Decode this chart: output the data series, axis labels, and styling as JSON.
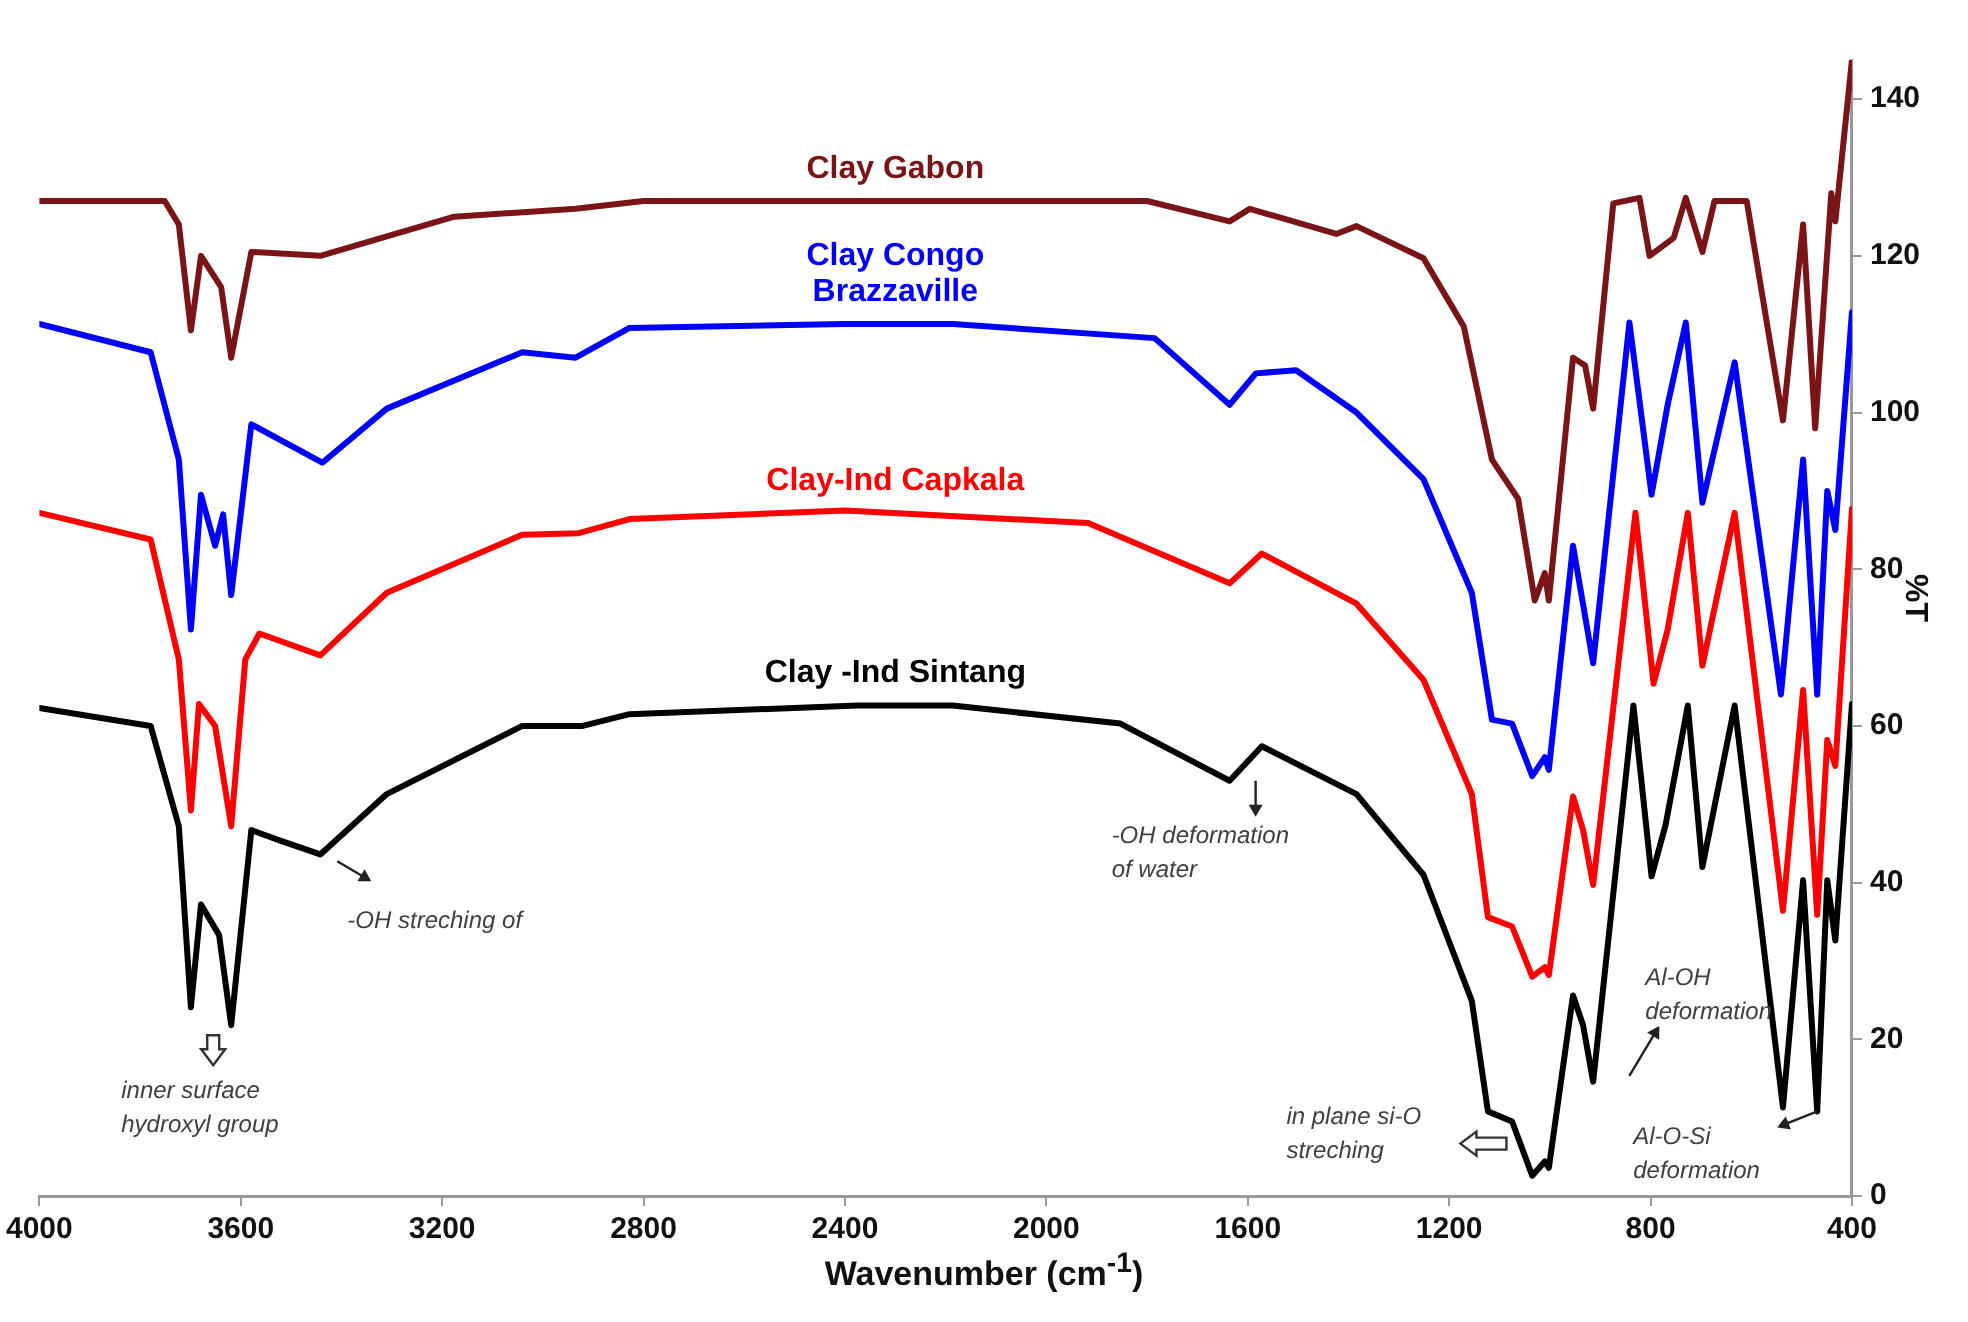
{
  "chart_data": {
    "type": "line",
    "xlabel": "Wavenumber (cm$^{-1}$)",
    "ylabel": "%T",
    "xlim": [
      4000,
      400
    ],
    "xticks": [
      4000,
      3600,
      3200,
      2800,
      2400,
      2000,
      1600,
      1200,
      800,
      400
    ],
    "ylim": [
      0,
      145
    ],
    "yticks": [
      0,
      20,
      40,
      60,
      80,
      100,
      120,
      140
    ],
    "grid": false,
    "legend": false,
    "marker": "none",
    "line_style": "solid",
    "series": [
      {
        "name": "Clay Gabon",
        "color": "#7b1416",
        "x": [
          4000,
          3779,
          3751,
          3723,
          3699,
          3679,
          3639,
          3619,
          3579,
          3442,
          3176,
          2935,
          2800,
          2400,
          2000,
          1800,
          1636,
          1596,
          1424,
          1384,
          1251,
          1171,
          1115,
          1063,
          1030,
          1010,
          1002,
          954,
          930,
          914,
          874,
          822,
          802,
          754,
          730,
          697,
          673,
          609,
          537,
          497,
          473,
          441,
          433,
          400
        ],
        "values": [
          127,
          127,
          127,
          124,
          110.5,
          120,
          116,
          107,
          120.5,
          120,
          125,
          126,
          127,
          127,
          127,
          127,
          124.4,
          126,
          122.8,
          123.8,
          119.7,
          111,
          94,
          89,
          76,
          79.5,
          76,
          107,
          106,
          100.5,
          126.7,
          127.4,
          120,
          122.3,
          127.4,
          120.5,
          127,
          127,
          99,
          124,
          98,
          128,
          124.4,
          145
        ]
      },
      {
        "name": "Clay Congo Brazzaville",
        "color": "#0000ff",
        "x": [
          4000,
          3779,
          3723,
          3699,
          3679,
          3651,
          3635,
          3619,
          3579,
          3438,
          3310,
          3041,
          2935,
          2828,
          2400,
          2186,
          1785,
          1636,
          1584,
          1504,
          1384,
          1251,
          1155,
          1115,
          1075,
          1035,
          1010,
          1002,
          954,
          914,
          842,
          798,
          766,
          730,
          697,
          633,
          541,
          497,
          469,
          449,
          433,
          400
        ],
        "values": [
          111.3,
          107.7,
          94,
          72.3,
          89.5,
          83,
          87,
          76.7,
          98.5,
          93.6,
          100.5,
          107.7,
          107,
          110.8,
          111.3,
          111.3,
          109.5,
          101,
          105,
          105.4,
          100,
          91.5,
          77,
          60.8,
          60.3,
          53.6,
          56,
          54.4,
          83,
          68,
          111.5,
          89.5,
          101,
          111.5,
          88.5,
          106.4,
          64,
          94,
          64,
          90,
          85,
          112.8
        ]
      },
      {
        "name": "Clay-Ind Capkala",
        "color": "#ff0000",
        "x": [
          4000,
          3779,
          3723,
          3699,
          3683,
          3651,
          3619,
          3591,
          3563,
          3442,
          3310,
          3041,
          2929,
          2828,
          2400,
          1917,
          1636,
          1572,
          1384,
          1251,
          1155,
          1123,
          1075,
          1035,
          1010,
          1002,
          954,
          934,
          914,
          830,
          794,
          766,
          726,
          697,
          633,
          537,
          497,
          469,
          449,
          433,
          400
        ],
        "values": [
          87.2,
          83.8,
          68.5,
          49.2,
          62.8,
          60,
          47.2,
          68.5,
          71.8,
          69,
          77,
          84.4,
          84.6,
          86.4,
          87.5,
          85.9,
          78.2,
          82,
          75.6,
          65.9,
          51.3,
          35.6,
          34.4,
          28,
          29.2,
          28.2,
          51,
          46.7,
          39.7,
          87.2,
          65.4,
          72.3,
          87.2,
          67.7,
          87.2,
          36.4,
          64.6,
          35.9,
          58.2,
          54.9,
          87.7
        ]
      },
      {
        "name": "Clay -Ind Sintang",
        "color": "#000000",
        "x": [
          4000,
          3779,
          3723,
          3699,
          3679,
          3643,
          3619,
          3579,
          3523,
          3442,
          3310,
          3041,
          2921,
          2828,
          2375,
          2186,
          1853,
          1636,
          1572,
          1384,
          1251,
          1155,
          1123,
          1075,
          1035,
          1010,
          1002,
          954,
          934,
          914,
          834,
          798,
          770,
          726,
          697,
          633,
          537,
          497,
          469,
          449,
          433,
          400
        ],
        "values": [
          62.3,
          60,
          47.2,
          24.1,
          37.2,
          33.3,
          21.8,
          46.7,
          45.4,
          43.6,
          51.3,
          60,
          60,
          61.5,
          62.6,
          62.6,
          60.3,
          53,
          57.4,
          51.3,
          41,
          24.9,
          10.8,
          9.5,
          2.6,
          4.4,
          3.6,
          25.6,
          21.8,
          14.6,
          62.6,
          40.8,
          47.4,
          62.6,
          42,
          62.6,
          11.3,
          40.3,
          10.8,
          40.3,
          32.6,
          62.8
        ]
      }
    ],
    "annotations": [
      {
        "text": "inner surface hydroxyl group",
        "x": 3619,
        "y": 21.8
      },
      {
        "text": "-OH streching of",
        "x": 3440,
        "y": 44
      },
      {
        "text": "-OH deformation of water",
        "x": 1636,
        "y": 53
      },
      "in plane si-O streching",
      "Al-OH deformation",
      {
        "text": "Al-O-Si deformation",
        "x": 469,
        "y": 10.8
      }
    ]
  }
}
